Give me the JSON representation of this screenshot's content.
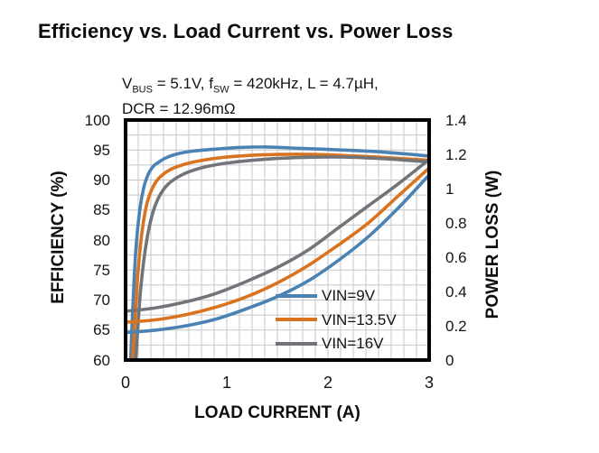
{
  "title": "Efficiency vs. Load Current vs. Power Loss",
  "subtitle": {
    "line1_parts": {
      "v": "V",
      "v_sub": "BUS",
      "mid1": " = 5.1V, f",
      "f_sub": "SW",
      "mid2": " = 420kHz, L = 4.7µH,"
    },
    "line2": "DCR = 12.96mΩ"
  },
  "legend": {
    "items": [
      {
        "label": "VIN=9V",
        "color": "#4a82b4"
      },
      {
        "label": "VIN=13.5V",
        "color": "#d9731f"
      },
      {
        "label": "VIN=16V",
        "color": "#71757a"
      }
    ]
  },
  "chart_data": {
    "type": "line",
    "title": "Efficiency vs. Load Current vs. Power Loss",
    "condition_note": "VBUS = 5.1V, fSW = 420kHz, L = 4.7µH, DCR = 12.96mΩ",
    "x_axis": {
      "label": "LOAD CURRENT (A)",
      "min": 0,
      "max": 3,
      "major_ticks": [
        0,
        1,
        2,
        3
      ],
      "minor_step": 0.125,
      "grid": true
    },
    "y_left": {
      "label": "EFFICIENCY (%)",
      "min": 60,
      "max": 100,
      "ticks": [
        100,
        95,
        90,
        85,
        80,
        75,
        70,
        65,
        60
      ],
      "minor_step": 2.5,
      "grid": true
    },
    "y_right": {
      "label": "POWER LOSS (W)",
      "min": 0,
      "max": 1.4,
      "tick_labels": [
        "1.4",
        "1.2",
        "1",
        "0.8",
        "0.6",
        "0.4",
        "0.2",
        "0"
      ]
    },
    "grid_color": "#c6c6c6",
    "border_color": "#000000",
    "legend_position": "inside-bottom-right",
    "series": [
      {
        "name": "VIN=9V efficiency",
        "axis": "left",
        "unit": "%",
        "color": "#4a82b4",
        "points": [
          [
            0.05,
            60
          ],
          [
            0.07,
            68
          ],
          [
            0.1,
            78
          ],
          [
            0.14,
            85
          ],
          [
            0.18,
            88.8
          ],
          [
            0.22,
            90.8
          ],
          [
            0.27,
            92.2
          ],
          [
            0.33,
            93.0
          ],
          [
            0.4,
            93.7
          ],
          [
            0.5,
            94.3
          ],
          [
            0.65,
            94.8
          ],
          [
            0.85,
            95.1
          ],
          [
            1.1,
            95.4
          ],
          [
            1.4,
            95.5
          ],
          [
            1.7,
            95.3
          ],
          [
            2.0,
            95.1
          ],
          [
            2.5,
            94.7
          ],
          [
            3.0,
            94.0
          ]
        ]
      },
      {
        "name": "VIN=13.5V efficiency",
        "axis": "left",
        "unit": "%",
        "color": "#d9731f",
        "points": [
          [
            0.07,
            60
          ],
          [
            0.09,
            66
          ],
          [
            0.12,
            74
          ],
          [
            0.16,
            81
          ],
          [
            0.21,
            86
          ],
          [
            0.27,
            88.8
          ],
          [
            0.34,
            90.5
          ],
          [
            0.45,
            91.8
          ],
          [
            0.6,
            92.7
          ],
          [
            0.8,
            93.4
          ],
          [
            1.05,
            93.9
          ],
          [
            1.35,
            94.2
          ],
          [
            1.7,
            94.3
          ],
          [
            2.0,
            94.2
          ],
          [
            2.5,
            93.8
          ],
          [
            3.0,
            93.3
          ]
        ]
      },
      {
        "name": "VIN=16V efficiency",
        "axis": "left",
        "unit": "%",
        "color": "#71757a",
        "points": [
          [
            0.1,
            60
          ],
          [
            0.12,
            65
          ],
          [
            0.15,
            72
          ],
          [
            0.2,
            79
          ],
          [
            0.26,
            84
          ],
          [
            0.33,
            87.2
          ],
          [
            0.42,
            89.3
          ],
          [
            0.55,
            90.8
          ],
          [
            0.72,
            91.9
          ],
          [
            0.95,
            92.7
          ],
          [
            1.2,
            93.2
          ],
          [
            1.5,
            93.6
          ],
          [
            1.85,
            93.8
          ],
          [
            2.2,
            93.8
          ],
          [
            2.6,
            93.5
          ],
          [
            3.0,
            93.0
          ]
        ]
      },
      {
        "name": "VIN=9V power loss",
        "axis": "right",
        "unit": "W",
        "color": "#4a82b4",
        "points": [
          [
            0,
            0.16
          ],
          [
            0.3,
            0.175
          ],
          [
            0.6,
            0.2
          ],
          [
            0.9,
            0.24
          ],
          [
            1.2,
            0.3
          ],
          [
            1.5,
            0.37
          ],
          [
            1.8,
            0.46
          ],
          [
            2.1,
            0.58
          ],
          [
            2.4,
            0.72
          ],
          [
            2.7,
            0.89
          ],
          [
            3.0,
            1.08
          ]
        ]
      },
      {
        "name": "VIN=13.5V power loss",
        "axis": "right",
        "unit": "W",
        "color": "#d9731f",
        "points": [
          [
            0,
            0.22
          ],
          [
            0.3,
            0.235
          ],
          [
            0.6,
            0.265
          ],
          [
            0.9,
            0.31
          ],
          [
            1.2,
            0.37
          ],
          [
            1.5,
            0.45
          ],
          [
            1.8,
            0.55
          ],
          [
            2.1,
            0.67
          ],
          [
            2.4,
            0.8
          ],
          [
            2.7,
            0.96
          ],
          [
            3.0,
            1.12
          ]
        ]
      },
      {
        "name": "VIN=16V power loss",
        "axis": "right",
        "unit": "W",
        "color": "#71757a",
        "points": [
          [
            0,
            0.285
          ],
          [
            0.3,
            0.305
          ],
          [
            0.6,
            0.34
          ],
          [
            0.9,
            0.39
          ],
          [
            1.2,
            0.46
          ],
          [
            1.5,
            0.54
          ],
          [
            1.8,
            0.64
          ],
          [
            2.1,
            0.77
          ],
          [
            2.4,
            0.9
          ],
          [
            2.7,
            1.03
          ],
          [
            3.0,
            1.17
          ]
        ]
      }
    ]
  }
}
